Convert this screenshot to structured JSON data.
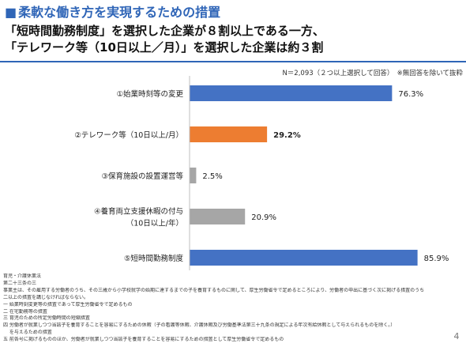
{
  "slide": {
    "title_marker": "■",
    "title": "柔軟な働き方を実現するための措置",
    "headline_line1": "「短時間勤務制度」を選択した企業が８割以上である一方、",
    "headline_line2": "「テレワーク等（10日以上／月）」を選択した企業は約３割",
    "note": "N＝2,093（２つ以上選択して回答）　※無回答を除いて抜粋",
    "page_number": "4"
  },
  "chart_data": {
    "type": "bar",
    "orientation": "horizontal",
    "xlim": [
      0,
      100
    ],
    "grid": false,
    "legend": "none",
    "categories": [
      [
        "①始業時刻等の変更"
      ],
      [
        "②テレワーク等（10日以上/月）"
      ],
      [
        "③保育施設の設置運営等"
      ],
      [
        "④養育両立支援休暇の付与",
        "（10日以上/年）"
      ],
      [
        "⑤短時間勤務制度"
      ]
    ],
    "values": [
      76.3,
      29.2,
      2.5,
      20.9,
      85.9
    ],
    "value_labels": [
      "76.3%",
      "29.2%",
      "2.5%",
      "20.9%",
      "85.9%"
    ],
    "colors": [
      "#4472c4",
      "#ed7d31",
      "#a6a6a6",
      "#a6a6a6",
      "#4472c4"
    ],
    "highlight_index": 1
  },
  "footnote": {
    "lines": [
      "育児・介護休業法",
      "第二十三条の三",
      "事業主は、その雇用する労働者のうち、その三歳から小学校就学の始期に達するまでの子を養育するものに関して、厚生労働省令で定めるところにより、労働者の申出に基づく次に掲げる措置のうち",
      "二以上の措置を講じなければならない。",
      "一 始業時刻変更等の措置であって厚生労働省令で定めるもの",
      "二 在宅勤務等の措置",
      "三 育児のための所定労働時間の短縮措置",
      "四 労働者が就業しつつ当該子を養育することを容易にするための休暇（子の看護等休暇、介護休暇及び労働基準法第三十九条の規定による年次有給休暇として与えられるものを除く。）",
      "　 を与えるための措置",
      "五 前各号に掲げるもののほか、労働者が就業しつつ当該子を養育することを容易にするための措置として厚生労働省令で定めるもの"
    ]
  }
}
